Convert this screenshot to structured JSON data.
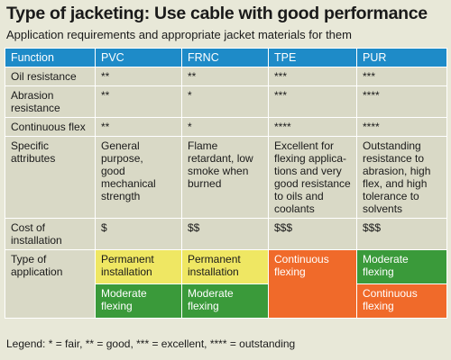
{
  "title": "Type of jacketing: Use cable with good performance",
  "subtitle": "Application requirements and appropriate jacket materials for them",
  "headers": [
    "Function",
    "PVC",
    "FRNC",
    "TPE",
    "PUR"
  ],
  "rows": {
    "oil": {
      "label": "Oil resistance",
      "pvc": "**",
      "frnc": "**",
      "tpe": "***",
      "pur": "***"
    },
    "abrasion": {
      "label_lines": [
        "Abrasion",
        "resistance"
      ],
      "pvc": "**",
      "frnc": "*",
      "tpe": "***",
      "pur": "****"
    },
    "flex": {
      "label": "Continuous flex",
      "pvc": "**",
      "frnc": "*",
      "tpe": "****",
      "pur": "****"
    },
    "attributes": {
      "label_lines": [
        "Specific",
        "attributes"
      ],
      "pvc": [
        "General",
        "purpose,",
        "good",
        "mechanical",
        "strength"
      ],
      "frnc": [
        "Flame",
        "retardant, low",
        "smoke when",
        "burned"
      ],
      "tpe": [
        "Excellent for",
        "flexing applica-",
        "tions and very",
        "good resistance",
        "to oils and",
        "coolants"
      ],
      "pur": [
        "Outstanding",
        "resistance to",
        "abrasion, high",
        "flex, and high",
        "tolerance to",
        "solvents"
      ]
    },
    "cost": {
      "label_lines": [
        "Cost of",
        "installation"
      ],
      "pvc": "$",
      "frnc": "$$",
      "tpe": "$$$",
      "pur": "$$$"
    },
    "application": {
      "label_lines": [
        "Type of",
        "application"
      ],
      "pvc_top": [
        "Permanent",
        "installation"
      ],
      "pvc_bottom": [
        "Moderate",
        "flexing"
      ],
      "frnc_top": [
        "Permanent",
        "installation"
      ],
      "frnc_bottom": [
        "Moderate",
        "flexing"
      ],
      "tpe": [
        "Continuous",
        "flexing"
      ],
      "pur_top": [
        "Moderate",
        "flexing"
      ],
      "pur_bottom": [
        "Continuous",
        "flexing"
      ]
    }
  },
  "legend": "Legend: * = fair, ** = good, *** = excellent, **** = outstanding",
  "colors": {
    "header_blue": "#1e8bc8",
    "cell_beige": "#d9d9c6",
    "background": "#e8e8d8",
    "permanent_yellow": "#efe763",
    "moderate_green": "#3a9a3a",
    "continuous_orange": "#f06a2a"
  }
}
